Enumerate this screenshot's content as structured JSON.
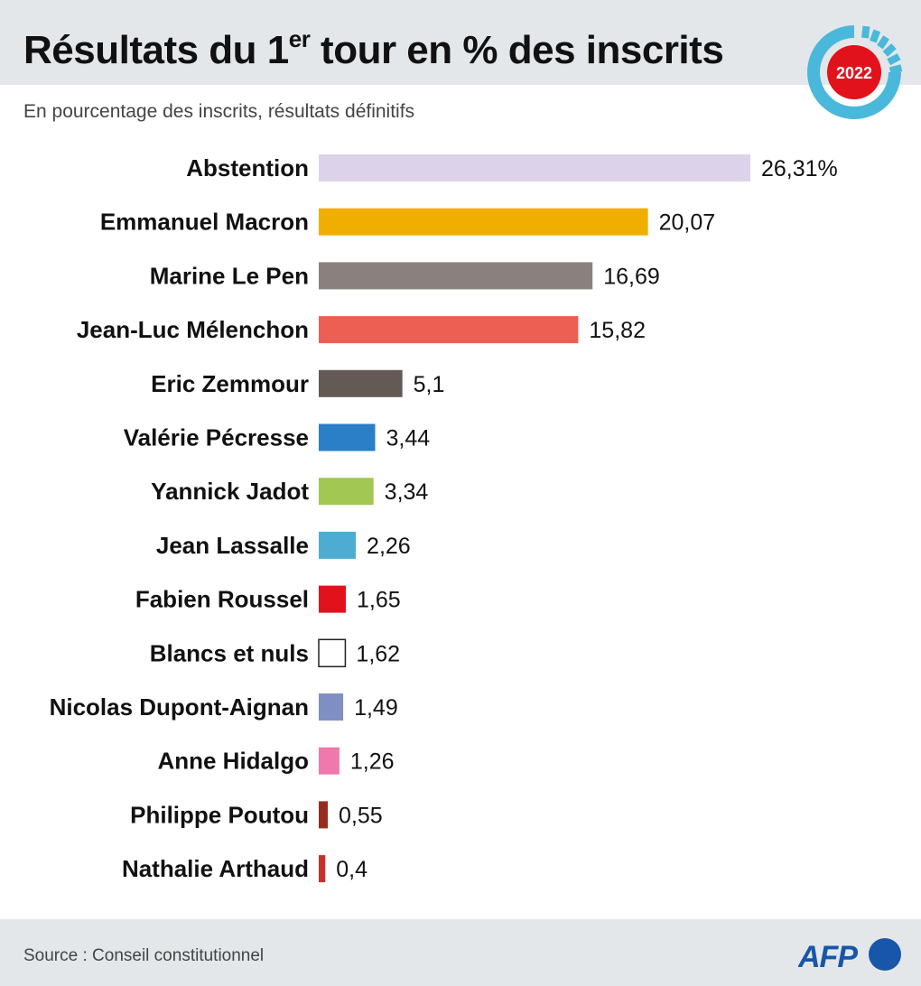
{
  "title_main": "Résultats du 1",
  "title_sup": "er",
  "title_rest": " tour en % des inscrits",
  "logo_year": "2022",
  "subtitle": "En pourcentage des inscrits, résultats définitifs",
  "source": "Source : Conseil constitutionnel",
  "brand": "AFP",
  "chart_data": {
    "type": "bar",
    "orientation": "horizontal",
    "title": "Résultats du 1er tour en % des inscrits",
    "unit": "%",
    "categories": [
      "Abstention",
      "Emmanuel Macron",
      "Marine Le Pen",
      "Jean-Luc Mélenchon",
      "Eric Zemmour",
      "Valérie Pécresse",
      "Yannick Jadot",
      "Jean Lassalle",
      "Fabien Roussel",
      "Blancs et nuls",
      "Nicolas Dupont-Aignan",
      "Anne Hidalgo",
      "Philippe Poutou",
      "Nathalie Arthaud"
    ],
    "values": [
      26.31,
      20.07,
      16.69,
      15.82,
      5.1,
      3.44,
      3.34,
      2.26,
      1.65,
      1.62,
      1.49,
      1.26,
      0.55,
      0.4
    ],
    "value_labels": [
      "26,31%",
      "20,07",
      "16,69",
      "15,82",
      "5,1",
      "3,44",
      "3,34",
      "2,26",
      "1,65",
      "1,62",
      "1,49",
      "1,26",
      "0,55",
      "0,4"
    ],
    "colors": [
      "#dcd2ea",
      "#f0ae00",
      "#8a817e",
      "#ec5f52",
      "#645a55",
      "#2a7fc6",
      "#a2c853",
      "#4eacd3",
      "#e2121c",
      "#ffffff",
      "#7f8fc3",
      "#ef78ac",
      "#962d1c",
      "#c6312a"
    ],
    "xlim": [
      0,
      26.31
    ],
    "grid": false
  }
}
